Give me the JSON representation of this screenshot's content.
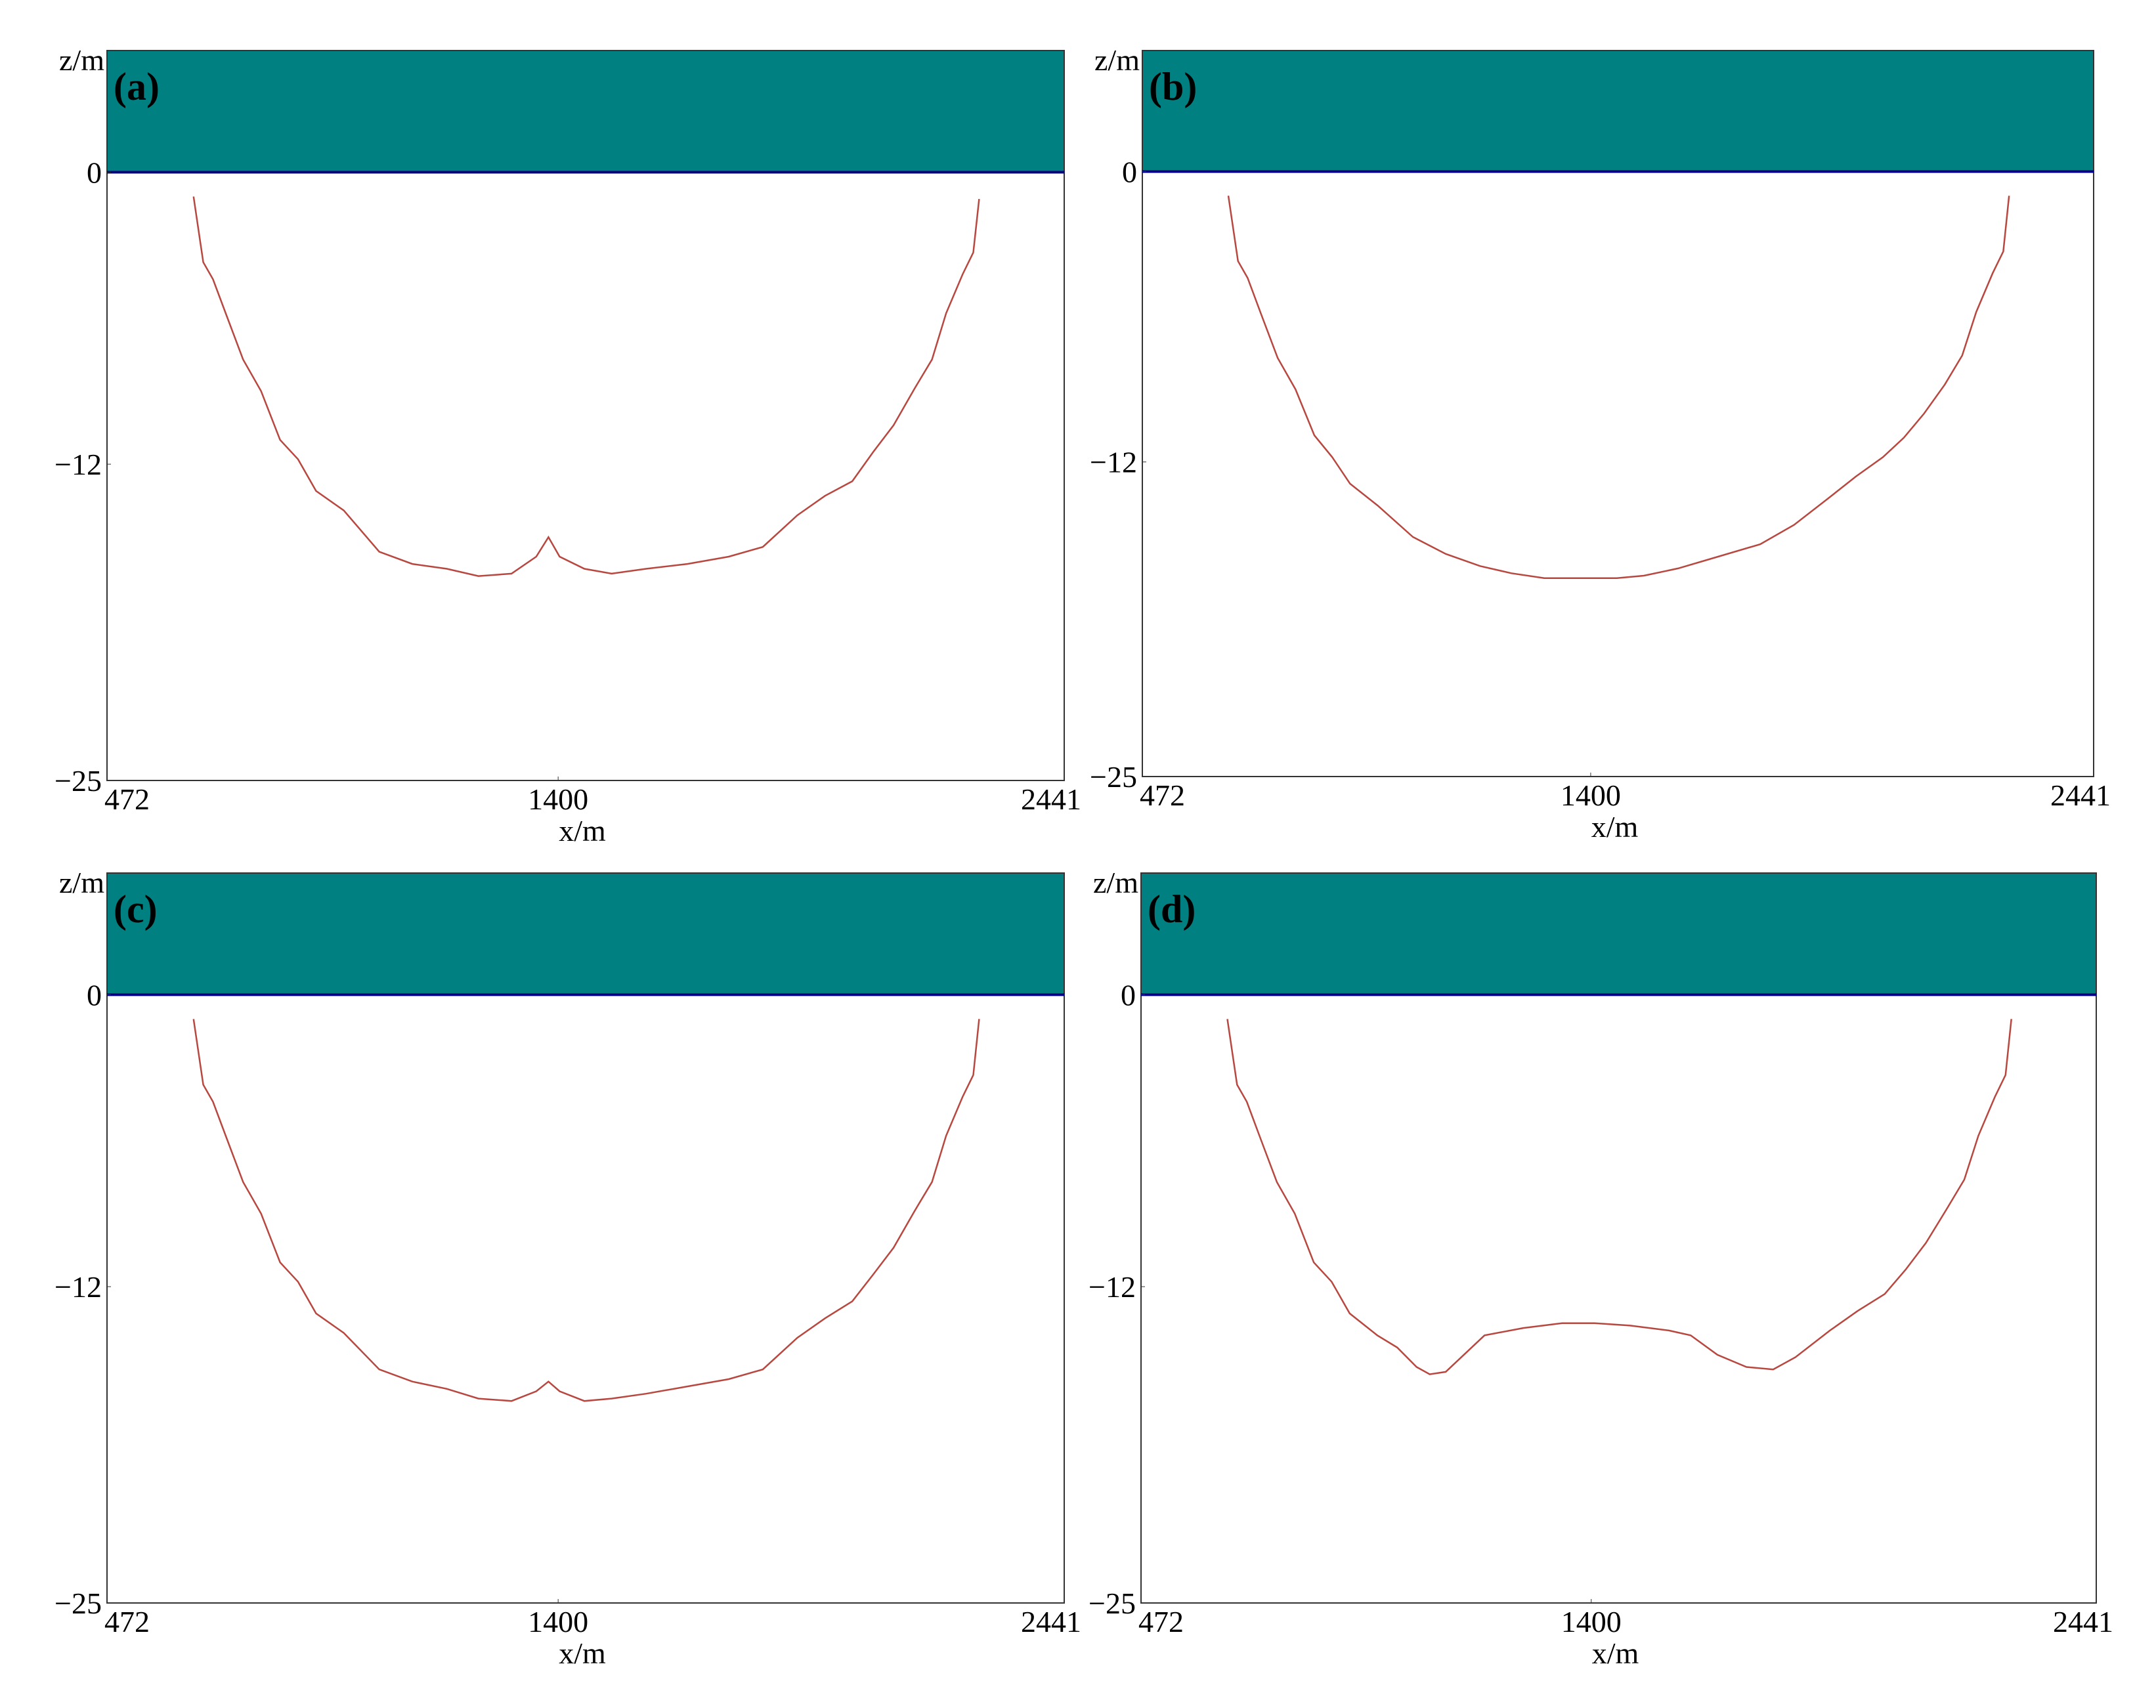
{
  "chart_data": [
    {
      "type": "line",
      "label": "(a)",
      "xlabel": "x/m",
      "ylabel": "z/m",
      "x": [
        650,
        670,
        690,
        718,
        752,
        789,
        828,
        865,
        902,
        959,
        1032,
        1100,
        1171,
        1236,
        1304,
        1355,
        1380,
        1403,
        1454,
        1510,
        1581,
        1666,
        1751,
        1821,
        1892,
        1949,
        2005,
        2048,
        2090,
        2133,
        2169,
        2198,
        2232,
        2254,
        2266
      ],
      "series": [
        {
          "color": "#b8473f",
          "values": [
            -1.0,
            -3.7,
            -4.4,
            -5.9,
            -7.7,
            -9.0,
            -11.0,
            -11.8,
            -13.1,
            -13.9,
            -15.6,
            -16.1,
            -16.3,
            -16.6,
            -16.5,
            -15.8,
            -15.0,
            -15.8,
            -16.3,
            -16.5,
            -16.3,
            -16.1,
            -15.8,
            -15.4,
            -14.1,
            -13.3,
            -12.7,
            -11.5,
            -10.4,
            -8.9,
            -7.7,
            -5.8,
            -4.2,
            -3.3,
            -1.1
          ]
        }
      ],
      "xlim": [
        472,
        2441
      ],
      "ylim": [
        -25,
        5
      ],
      "xticks": [
        472,
        1400,
        2441
      ],
      "yticks": [
        {
          "value": -25,
          "label": "−25"
        },
        {
          "value": -12,
          "label": "−12"
        },
        0
      ],
      "water_color": "#008080",
      "surface_color": "#000080"
    },
    {
      "type": "line",
      "label": "(b)",
      "xlabel": "x/m",
      "ylabel": "z/m",
      "x": [
        650,
        670,
        690,
        718,
        752,
        789,
        828,
        865,
        902,
        959,
        1032,
        1100,
        1171,
        1236,
        1304,
        1355,
        1400,
        1454,
        1510,
        1581,
        1666,
        1751,
        1821,
        1892,
        1949,
        2005,
        2048,
        2090,
        2133,
        2169,
        2198,
        2232,
        2254,
        2266
      ],
      "series": [
        {
          "color": "#b8473f",
          "values": [
            -1.0,
            -3.7,
            -4.4,
            -5.9,
            -7.7,
            -9.0,
            -10.9,
            -11.8,
            -12.9,
            -13.8,
            -15.1,
            -15.8,
            -16.3,
            -16.6,
            -16.8,
            -16.8,
            -16.8,
            -16.8,
            -16.7,
            -16.4,
            -15.9,
            -15.4,
            -14.6,
            -13.5,
            -12.6,
            -11.8,
            -11.0,
            -10.0,
            -8.8,
            -7.6,
            -5.8,
            -4.2,
            -3.3,
            -1.0
          ]
        }
      ],
      "xlim": [
        472,
        2441
      ],
      "ylim": [
        -25,
        5
      ],
      "xticks": [
        472,
        1400,
        2441
      ],
      "yticks": [
        {
          "value": -25,
          "label": "−25"
        },
        {
          "value": -12,
          "label": "−12"
        },
        0
      ],
      "water_color": "#008080",
      "surface_color": "#000080"
    },
    {
      "type": "line",
      "label": "(c)",
      "xlabel": "x/m",
      "ylabel": "z/m",
      "x": [
        650,
        670,
        690,
        718,
        752,
        789,
        828,
        865,
        902,
        959,
        1032,
        1100,
        1171,
        1236,
        1304,
        1355,
        1380,
        1403,
        1454,
        1510,
        1581,
        1666,
        1751,
        1821,
        1892,
        1949,
        2005,
        2048,
        2090,
        2133,
        2169,
        2198,
        2232,
        2254,
        2266
      ],
      "series": [
        {
          "color": "#b8473f",
          "values": [
            -1.0,
            -3.7,
            -4.4,
            -5.9,
            -7.7,
            -9.0,
            -11.0,
            -11.8,
            -13.1,
            -13.9,
            -15.4,
            -15.9,
            -16.2,
            -16.6,
            -16.7,
            -16.3,
            -15.9,
            -16.3,
            -16.7,
            -16.6,
            -16.4,
            -16.1,
            -15.8,
            -15.4,
            -14.1,
            -13.3,
            -12.6,
            -11.5,
            -10.4,
            -8.9,
            -7.7,
            -5.8,
            -4.2,
            -3.3,
            -1.0
          ]
        }
      ],
      "xlim": [
        472,
        2441
      ],
      "ylim": [
        -25,
        5
      ],
      "xticks": [
        472,
        1400,
        2441
      ],
      "yticks": [
        {
          "value": -25,
          "label": "−25"
        },
        {
          "value": -12,
          "label": "−12"
        },
        0
      ],
      "water_color": "#008080",
      "surface_color": "#000080"
    },
    {
      "type": "line",
      "label": "(d)",
      "xlabel": "x/m",
      "ylabel": "z/m",
      "x": [
        650,
        670,
        690,
        718,
        752,
        789,
        828,
        865,
        902,
        959,
        1000,
        1040,
        1067,
        1100,
        1180,
        1260,
        1340,
        1407,
        1480,
        1560,
        1605,
        1660,
        1720,
        1775,
        1821,
        1892,
        1949,
        2005,
        2048,
        2090,
        2133,
        2169,
        2198,
        2232,
        2254,
        2266
      ],
      "series": [
        {
          "color": "#b8473f",
          "values": [
            -1.0,
            -3.7,
            -4.4,
            -5.9,
            -7.7,
            -9.0,
            -11.0,
            -11.8,
            -13.1,
            -14.0,
            -14.5,
            -15.3,
            -15.6,
            -15.5,
            -14.0,
            -13.7,
            -13.5,
            -13.5,
            -13.6,
            -13.8,
            -14.0,
            -14.8,
            -15.3,
            -15.4,
            -14.9,
            -13.8,
            -13.0,
            -12.3,
            -11.3,
            -10.2,
            -8.8,
            -7.6,
            -5.8,
            -4.2,
            -3.3,
            -1.0
          ]
        }
      ],
      "xlim": [
        472,
        2441
      ],
      "ylim": [
        -25,
        5
      ],
      "xticks": [
        472,
        1400,
        2441
      ],
      "yticks": [
        {
          "value": -25,
          "label": "−25"
        },
        {
          "value": -12,
          "label": "−12"
        },
        0
      ],
      "water_color": "#008080",
      "surface_color": "#000080"
    }
  ]
}
